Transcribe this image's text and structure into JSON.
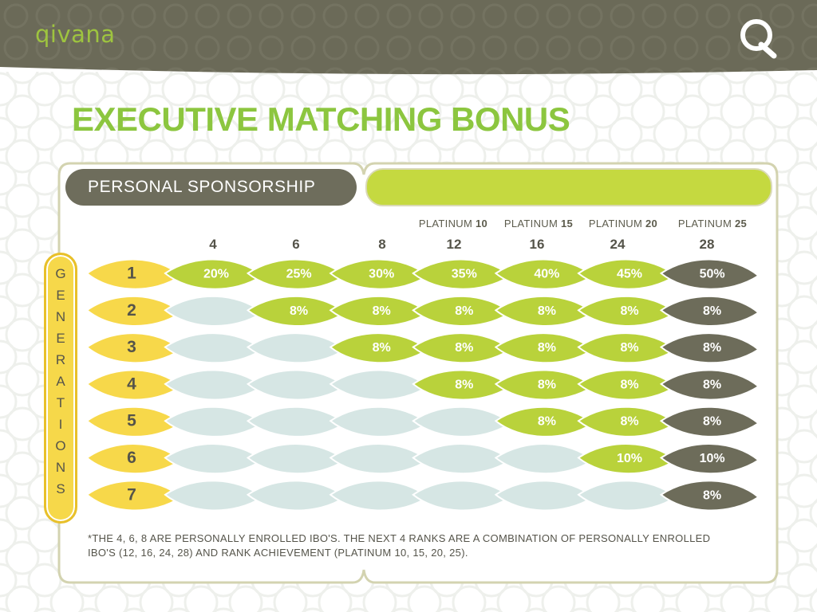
{
  "header": {
    "brand": "qivana",
    "logo_letter": "Q"
  },
  "title": "EXECUTIVE MATCHING BONUS",
  "personal_sponsorship_label": "PERSONAL SPONSORSHIP",
  "platinum_ranks": [
    {
      "prefix": "PLATINUM",
      "num": "10"
    },
    {
      "prefix": "PLATINUM",
      "num": "15"
    },
    {
      "prefix": "PLATINUM",
      "num": "20"
    },
    {
      "prefix": "PLATINUM",
      "num": "25"
    }
  ],
  "columns": [
    "4",
    "6",
    "8",
    "12",
    "16",
    "24",
    "28"
  ],
  "generations_label": [
    "G",
    "E",
    "N",
    "E",
    "R",
    "A",
    "T",
    "I",
    "O",
    "N",
    "S"
  ],
  "rows": [
    {
      "gen": "1",
      "cells": [
        "20%",
        "25%",
        "30%",
        "35%",
        "40%",
        "45%",
        "50%"
      ]
    },
    {
      "gen": "2",
      "cells": [
        "",
        "8%",
        "8%",
        "8%",
        "8%",
        "8%",
        "8%"
      ]
    },
    {
      "gen": "3",
      "cells": [
        "",
        "",
        "8%",
        "8%",
        "8%",
        "8%",
        "8%"
      ]
    },
    {
      "gen": "4",
      "cells": [
        "",
        "",
        "",
        "8%",
        "8%",
        "8%",
        "8%"
      ]
    },
    {
      "gen": "5",
      "cells": [
        "",
        "",
        "",
        "",
        "8%",
        "8%",
        "8%"
      ]
    },
    {
      "gen": "6",
      "cells": [
        "",
        "",
        "",
        "",
        "",
        "10%",
        "10%"
      ]
    },
    {
      "gen": "7",
      "cells": [
        "",
        "",
        "",
        "",
        "",
        "",
        "8%"
      ]
    }
  ],
  "colors": {
    "header_olive": "#6b6a58",
    "title_green": "#8cc63f",
    "lime_leaf": "#b9d23b",
    "dark_leaf": "#6d6c5a",
    "empty_leaf": "#d6e6e4",
    "yellow_leaf": "#f7d84a"
  },
  "footnote": "*THE 4, 6, 8 ARE PERSONALLY ENROLLED IBO'S. THE NEXT 4 RANKS ARE A COMBINATION OF PERSONALLY ENROLLED IBO'S (12, 16, 24, 28) AND RANK ACHIEVEMENT (PLATINUM 10, 15, 20, 25)."
}
